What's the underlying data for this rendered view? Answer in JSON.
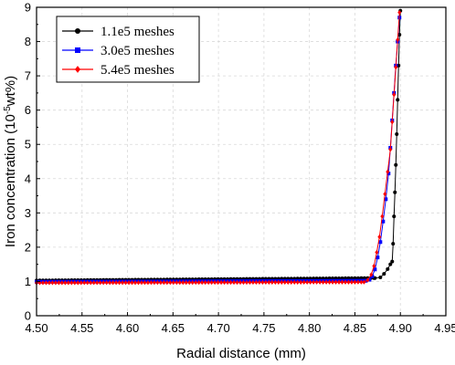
{
  "chart_data": {
    "type": "line",
    "title": "",
    "xlabel": "Radial distance (mm)",
    "ylabel_parts": {
      "prefix": "Iron concentration (10",
      "sup": "-5",
      "suffix": "wt%)"
    },
    "xlim": [
      4.5,
      4.95
    ],
    "ylim": [
      0,
      9
    ],
    "x_ticks": [
      "4.50",
      "4.55",
      "4.60",
      "4.65",
      "4.70",
      "4.75",
      "4.80",
      "4.85",
      "4.90",
      "4.95"
    ],
    "y_ticks": [
      "0",
      "1",
      "2",
      "3",
      "4",
      "5",
      "6",
      "7",
      "8",
      "9"
    ],
    "grid": true,
    "legend_position": "top-left",
    "series": [
      {
        "name": "1.1e5 meshes",
        "color": "#000000",
        "marker": "circle",
        "flat_start": 4.5,
        "flat_end": 4.872,
        "flat_y0": 1.03,
        "flat_y1": 1.1,
        "points": [
          [
            4.872,
            1.1
          ],
          [
            4.878,
            1.12
          ],
          [
            4.882,
            1.22
          ],
          [
            4.886,
            1.36
          ],
          [
            4.889,
            1.5
          ],
          [
            4.891,
            1.58
          ],
          [
            4.892,
            2.1
          ],
          [
            4.893,
            2.9
          ],
          [
            4.894,
            3.6
          ],
          [
            4.895,
            4.4
          ],
          [
            4.896,
            5.3
          ],
          [
            4.897,
            6.3
          ],
          [
            4.898,
            7.3
          ],
          [
            4.899,
            8.2
          ],
          [
            4.9,
            8.9
          ]
        ]
      },
      {
        "name": "3.0e5 meshes",
        "color": "#0000ff",
        "marker": "square",
        "flat_start": 4.5,
        "flat_end": 4.862,
        "flat_y0": 0.99,
        "flat_y1": 1.02,
        "points": [
          [
            4.862,
            1.02
          ],
          [
            4.866,
            1.05
          ],
          [
            4.869,
            1.15
          ],
          [
            4.872,
            1.35
          ],
          [
            4.875,
            1.7
          ],
          [
            4.878,
            2.15
          ],
          [
            4.881,
            2.75
          ],
          [
            4.884,
            3.4
          ],
          [
            4.887,
            4.15
          ],
          [
            4.889,
            4.9
          ],
          [
            4.891,
            5.7
          ],
          [
            4.893,
            6.5
          ],
          [
            4.895,
            7.3
          ],
          [
            4.897,
            8.0
          ],
          [
            4.899,
            8.7
          ]
        ]
      },
      {
        "name": "5.4e5 meshes",
        "color": "#ff0000",
        "marker": "diamond",
        "flat_start": 4.5,
        "flat_end": 4.86,
        "flat_y0": 0.96,
        "flat_y1": 0.98,
        "points": [
          [
            4.86,
            0.98
          ],
          [
            4.864,
            1.04
          ],
          [
            4.868,
            1.2
          ],
          [
            4.871,
            1.45
          ],
          [
            4.874,
            1.85
          ],
          [
            4.877,
            2.3
          ],
          [
            4.88,
            2.9
          ],
          [
            4.883,
            3.55
          ],
          [
            4.886,
            4.2
          ],
          [
            4.889,
            4.85
          ],
          [
            4.891,
            5.65
          ],
          [
            4.893,
            6.45
          ],
          [
            4.895,
            7.25
          ],
          [
            4.897,
            8.05
          ],
          [
            4.899,
            8.85
          ]
        ]
      }
    ]
  }
}
